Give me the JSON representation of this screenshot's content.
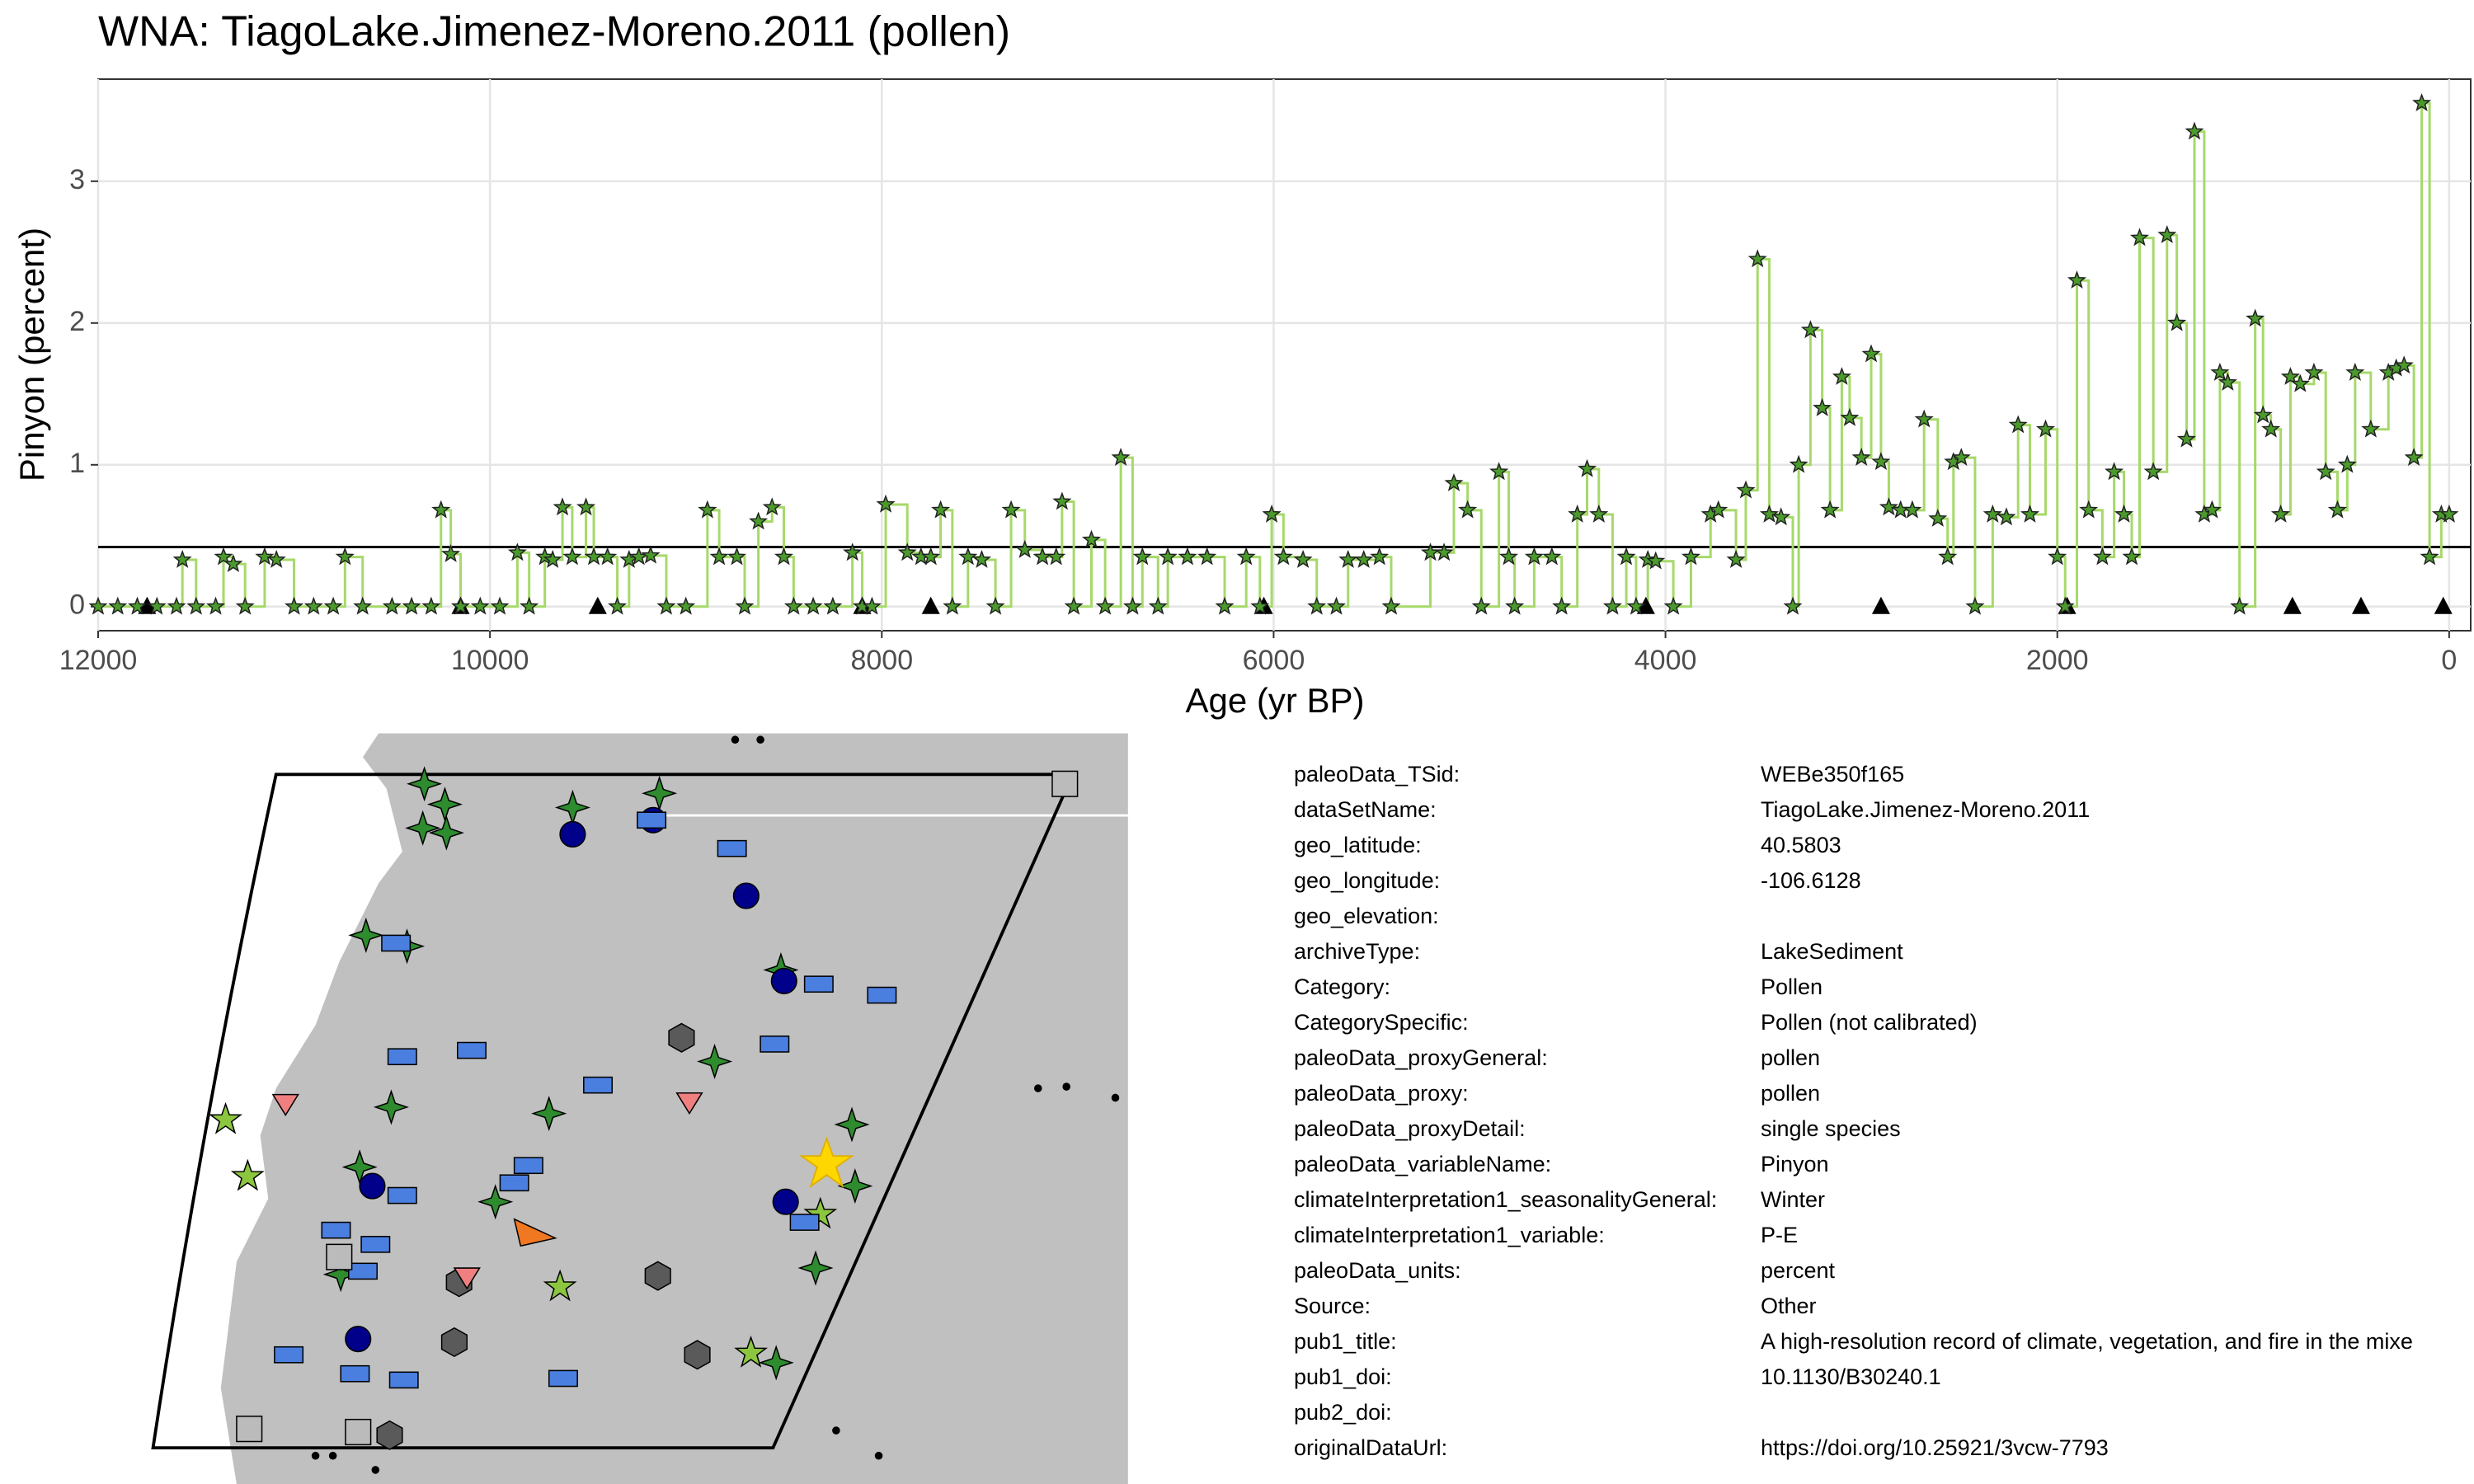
{
  "chart_data": {
    "type": "line",
    "step": true,
    "title": "WNA: TiagoLake.Jimenez-Moreno.2011 (pollen)",
    "x_label": "Age (yr BP)",
    "y_label": "Pinyon (percent)",
    "x": [
      12000,
      11900,
      11800,
      11700,
      11600,
      11570,
      11500,
      11400,
      11360,
      11310,
      11250,
      11150,
      11090,
      11000,
      10900,
      10800,
      10740,
      10650,
      10500,
      10400,
      10300,
      10250,
      10200,
      10150,
      10050,
      9950,
      9860,
      9800,
      9720,
      9680,
      9630,
      9580,
      9510,
      9470,
      9400,
      9350,
      9290,
      9240,
      9180,
      9100,
      9000,
      8890,
      8830,
      8740,
      8700,
      8630,
      8560,
      8500,
      8450,
      8350,
      8250,
      8150,
      8100,
      8050,
      7980,
      7870,
      7800,
      7750,
      7700,
      7640,
      7560,
      7490,
      7420,
      7340,
      7270,
      7180,
      7110,
      7080,
      7020,
      6930,
      6860,
      6780,
      6720,
      6670,
      6590,
      6540,
      6440,
      6340,
      6250,
      6140,
      6070,
      6010,
      5950,
      5850,
      5780,
      5680,
      5620,
      5540,
      5460,
      5400,
      5200,
      5130,
      5080,
      5010,
      4940,
      4850,
      4800,
      4770,
      4670,
      4580,
      4530,
      4450,
      4400,
      4340,
      4270,
      4200,
      4150,
      4090,
      4050,
      3960,
      3870,
      3770,
      3730,
      3640,
      3590,
      3530,
      3470,
      3410,
      3350,
      3320,
      3260,
      3200,
      3160,
      3100,
      3060,
      3000,
      2950,
      2900,
      2860,
      2800,
      2740,
      2680,
      2610,
      2560,
      2530,
      2490,
      2420,
      2330,
      2260,
      2200,
      2140,
      2060,
      2000,
      1960,
      1900,
      1840,
      1770,
      1710,
      1660,
      1620,
      1580,
      1510,
      1440,
      1390,
      1340,
      1300,
      1250,
      1210,
      1170,
      1130,
      1070,
      990,
      950,
      910,
      860,
      810,
      760,
      690,
      630,
      570,
      520,
      480,
      400,
      310,
      270,
      230,
      180,
      140,
      100,
      40,
      0
    ],
    "values": [
      0,
      0,
      0,
      0,
      0,
      0.33,
      0,
      0,
      0.35,
      0.3,
      0,
      0.35,
      0.33,
      0,
      0,
      0,
      0.35,
      0,
      0,
      0,
      0,
      0.68,
      0.37,
      0,
      0,
      0,
      0.38,
      0,
      0.35,
      0.33,
      0.7,
      0.35,
      0.7,
      0.35,
      0.35,
      0,
      0.33,
      0.35,
      0.36,
      0,
      0,
      0.68,
      0.35,
      0.35,
      0,
      0.6,
      0.7,
      0.35,
      0,
      0,
      0,
      0.38,
      0,
      0,
      0.72,
      0.38,
      0.35,
      0.35,
      0.68,
      0,
      0.35,
      0.33,
      0,
      0.68,
      0.4,
      0.35,
      0.35,
      0.74,
      0,
      0.47,
      0,
      1.05,
      0,
      0.35,
      0,
      0.35,
      0.35,
      0.35,
      0,
      0.35,
      0,
      0.65,
      0.35,
      0.33,
      0,
      0,
      0.33,
      0.33,
      0.35,
      0,
      0.38,
      0.38,
      0.87,
      0.68,
      0,
      0.95,
      0.35,
      0,
      0.35,
      0.35,
      0,
      0.65,
      0.97,
      0.65,
      0,
      0.35,
      0,
      0.33,
      0.32,
      0,
      0.35,
      0.65,
      0.68,
      0.33,
      0.82,
      2.45,
      0.65,
      0.63,
      0,
      1.0,
      1.95,
      1.4,
      0.68,
      1.62,
      1.33,
      1.05,
      1.78,
      1.02,
      0.7,
      0.68,
      0.68,
      1.32,
      0.62,
      0.35,
      1.02,
      1.05,
      0,
      0.65,
      0.63,
      1.28,
      0.65,
      1.25,
      0.35,
      0,
      2.3,
      0.68,
      0.35,
      0.95,
      0.65,
      0.35,
      2.6,
      0.95,
      2.62,
      2.0,
      1.18,
      3.35,
      0.65,
      0.68,
      1.65,
      1.58,
      0,
      2.03,
      1.35,
      1.25,
      0.65,
      1.62,
      1.57,
      1.65,
      0.95,
      0.68,
      1.0,
      1.65,
      1.25,
      1.65,
      1.68,
      1.7,
      1.05,
      3.55,
      0.35,
      0.65,
      0.65
    ],
    "color": "#a6d96a",
    "marker_color": "#4a9a2c",
    "reference_line": 0.42,
    "chron_controls": {
      "x": [
        11750,
        10150,
        9450,
        8100,
        7750,
        6050,
        4100,
        2900,
        1950,
        800,
        450,
        30
      ],
      "values": [
        0,
        0,
        0,
        0,
        0,
        0,
        0,
        0,
        0,
        0,
        0,
        0
      ]
    },
    "xlim": [
      12000,
      -110
    ],
    "ylim": [
      -0.17,
      3.72
    ],
    "xticks": [
      12000,
      10000,
      8000,
      6000,
      4000,
      2000,
      0
    ],
    "yticks": [
      0,
      1,
      2,
      3
    ],
    "grid": true
  },
  "metadata": {
    "rows": [
      {
        "key": "paleoData_TSid:",
        "value": "WEBe350f165"
      },
      {
        "key": "dataSetName:",
        "value": "TiagoLake.Jimenez-Moreno.2011"
      },
      {
        "key": "geo_latitude:",
        "value": "40.5803"
      },
      {
        "key": "geo_longitude:",
        "value": "-106.6128"
      },
      {
        "key": "geo_elevation:"
      },
      {
        "key": "archiveType:",
        "value": "LakeSediment"
      },
      {
        "key": "Category:",
        "value": "Pollen"
      },
      {
        "key": "CategorySpecific:",
        "value": "Pollen (not calibrated)"
      },
      {
        "key": "paleoData_proxyGeneral:",
        "value": "pollen"
      },
      {
        "key": "paleoData_proxy:",
        "value": "pollen"
      },
      {
        "key": "paleoData_proxyDetail:",
        "value": "single species"
      },
      {
        "key": "paleoData_variableName:",
        "value": "Pinyon"
      },
      {
        "key": "climateInterpretation1_seasonalityGeneral:",
        "value": "Winter"
      },
      {
        "key": "climateInterpretation1_variable:",
        "value": "P-E"
      },
      {
        "key": "paleoData_units:",
        "value": "percent"
      },
      {
        "key": "Source:",
        "value": "Other"
      },
      {
        "key": "pub1_title:",
        "value": "A high-resolution record of climate, vegetation, and fire in the mixe"
      },
      {
        "key": "pub1_doi:",
        "value": "10.1130/B30240.1"
      },
      {
        "key": "pub2_doi:"
      },
      {
        "key": "originalDataUrl:",
        "value": "https://doi.org/10.25921/3vcw-7793"
      }
    ]
  }
}
